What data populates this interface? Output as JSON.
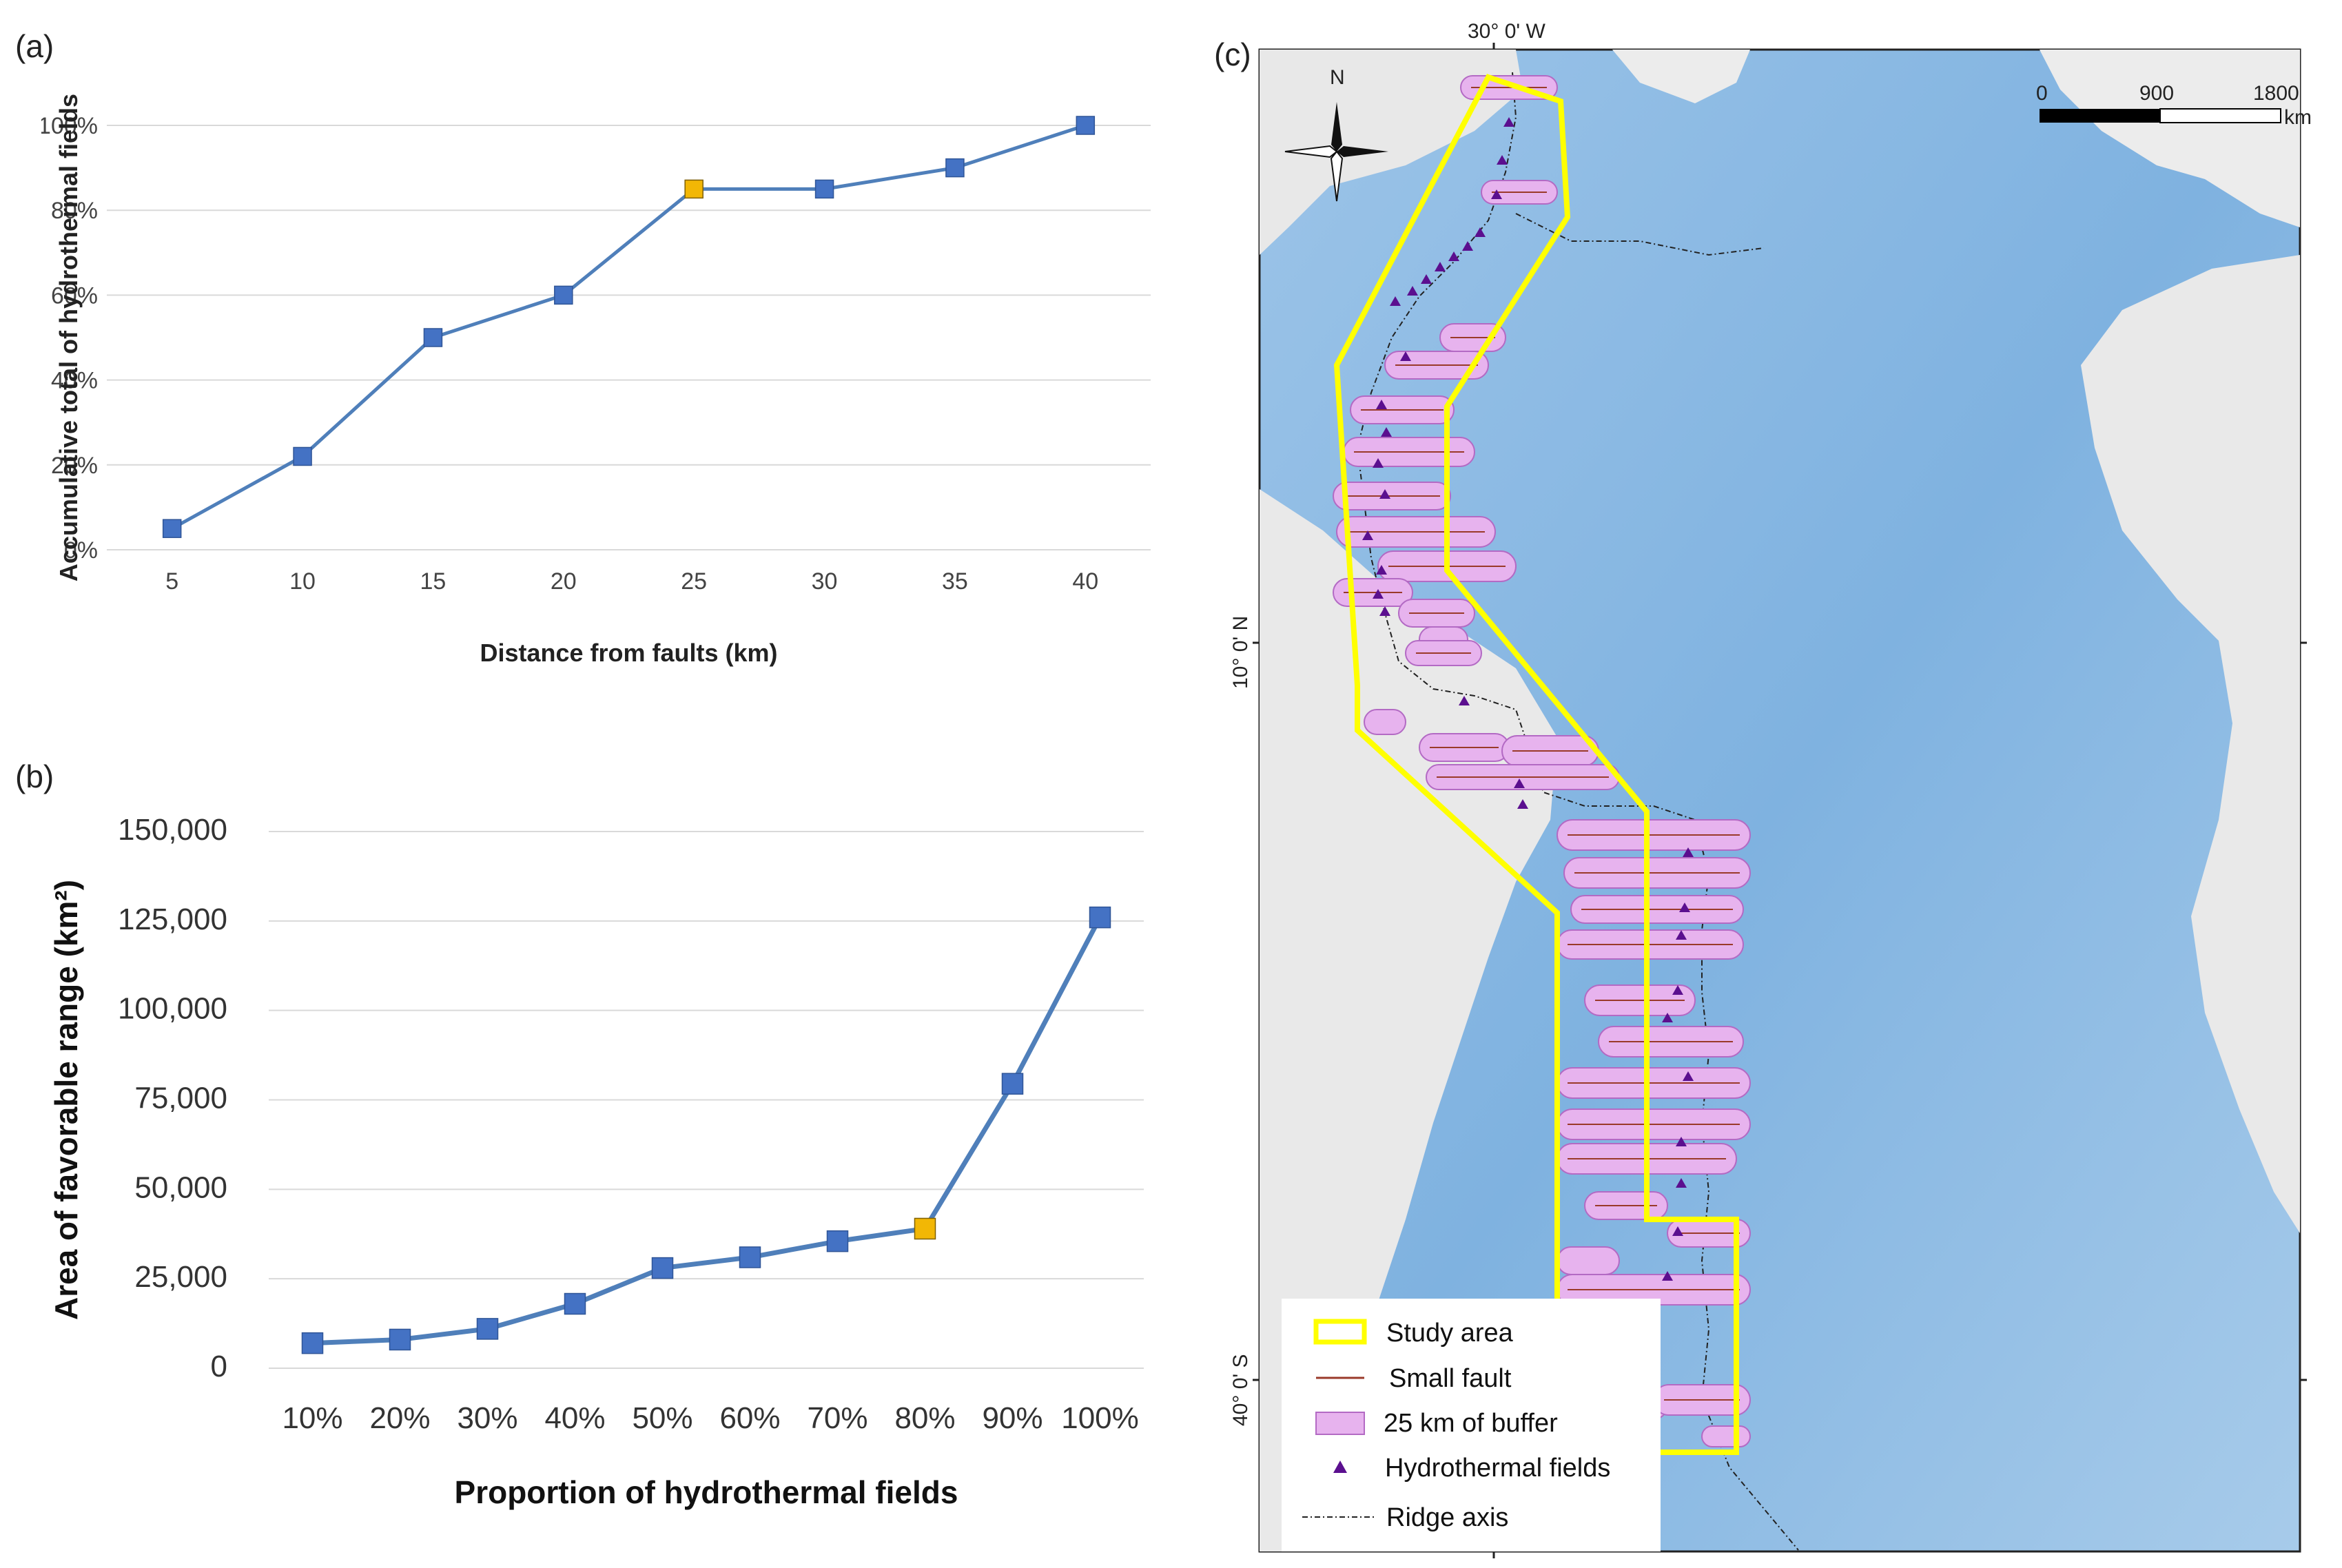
{
  "panel_labels": {
    "a": "(a)",
    "b": "(b)",
    "c": "(c)"
  },
  "colors": {
    "line": "#4f7fba",
    "marker": "#4472c4",
    "highlight": "#f2b705",
    "grid": "#d9d9d9",
    "ocean_deep": "#6fa8dc",
    "ocean_shallow": "#bcd8f0",
    "land": "#e6e6e6",
    "study_area": "#ffff00",
    "buffer_fill": "#e7b3ee",
    "buffer_stroke": "#b36ac4",
    "fault": "#9a3a2a",
    "hydro": "#5b0f8f",
    "ridge": "#222222"
  },
  "chart_data": [
    {
      "id": "a",
      "type": "line",
      "title": "",
      "xlabel": "Distance from faults (km)",
      "ylabel": "Accumulative total of hydrothermal fields",
      "categories": [
        "5",
        "10",
        "15",
        "20",
        "25",
        "30",
        "35",
        "40"
      ],
      "series": [
        {
          "name": "Accumulative total",
          "values": [
            5,
            22,
            50,
            60,
            85,
            85,
            90,
            100
          ]
        }
      ],
      "highlight_index": 4,
      "ylim": [
        0,
        100
      ],
      "yticks": [
        "0%",
        "20%",
        "40%",
        "60%",
        "80%",
        "100%"
      ],
      "ytick_values": [
        0,
        20,
        40,
        60,
        80,
        100
      ],
      "grid": true
    },
    {
      "id": "b",
      "type": "line",
      "title": "",
      "xlabel": "Proportion of hydrothermal fields",
      "ylabel": "Area of favorable range (km²)",
      "categories": [
        "10%",
        "20%",
        "30%",
        "40%",
        "50%",
        "60%",
        "70%",
        "80%",
        "90%",
        "100%"
      ],
      "series": [
        {
          "name": "Area of favorable range",
          "values": [
            7000,
            8000,
            11000,
            18000,
            28000,
            31000,
            35500,
            39000,
            79500,
            126000
          ]
        }
      ],
      "highlight_index": 7,
      "ylim": [
        0,
        150000
      ],
      "yticks": [
        "0",
        "25,000",
        "50,000",
        "75,000",
        "100,000",
        "125,000",
        "150,000"
      ],
      "ytick_values": [
        0,
        25000,
        50000,
        75000,
        100000,
        125000,
        150000
      ],
      "grid": true
    }
  ],
  "map": {
    "top_label": "30°  0' W",
    "lat_label_north": "10°  0' N",
    "lat_label_south": "40°  0' S",
    "north_label": "N",
    "scale_labels": [
      "0",
      "900",
      "1800"
    ],
    "scale_unit": "km",
    "legend": [
      {
        "name": "study-area",
        "label": "Study area"
      },
      {
        "name": "small-fault",
        "label": "Small fault"
      },
      {
        "name": "buffer",
        "label": "25 km of buffer"
      },
      {
        "name": "hydrothermal-fields",
        "label": "Hydrothermal fields"
      },
      {
        "name": "ridge-axis",
        "label": "Ridge axis"
      }
    ]
  }
}
